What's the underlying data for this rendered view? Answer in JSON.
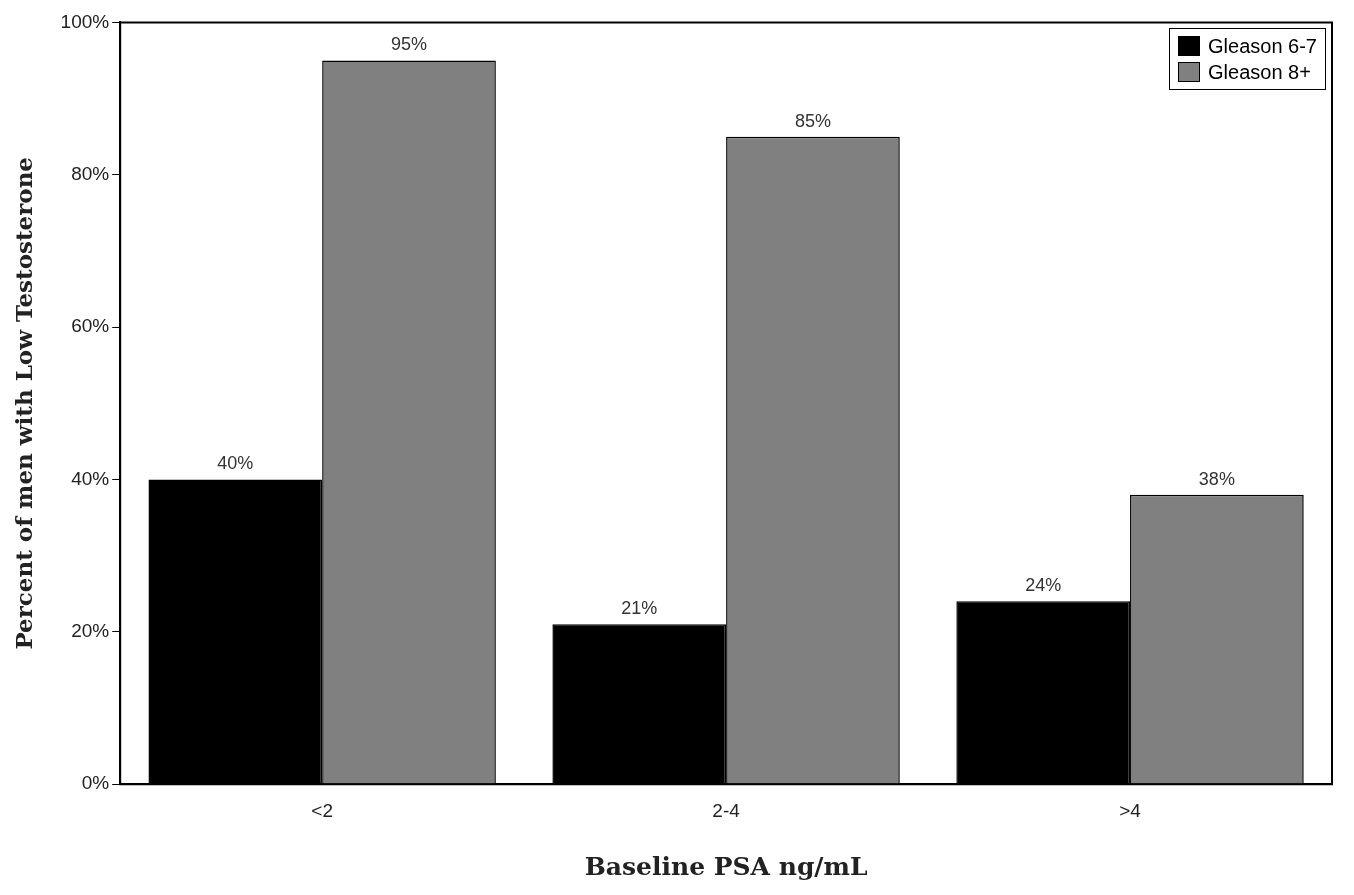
{
  "chart_data": {
    "type": "bar",
    "xlabel": "Baseline PSA ng/mL",
    "ylabel": "Percent of men with Low Testosterone",
    "categories": [
      "<2",
      "2-4",
      ">4"
    ],
    "series": [
      {
        "name": "Gleason 6-7",
        "color": "#000000",
        "values": [
          40,
          21,
          24
        ],
        "value_labels": [
          "40%",
          "21%",
          "24%"
        ]
      },
      {
        "name": "Gleason 8+",
        "color": "#808080",
        "values": [
          95,
          85,
          38
        ],
        "value_labels": [
          "95%",
          "85%",
          "38%"
        ]
      }
    ],
    "ylim": [
      0,
      100
    ],
    "yticks": [
      {
        "value": 0,
        "label": "0%"
      },
      {
        "value": 20,
        "label": "20%"
      },
      {
        "value": 40,
        "label": "40%"
      },
      {
        "value": 60,
        "label": "60%"
      },
      {
        "value": 80,
        "label": "80%"
      },
      {
        "value": 100,
        "label": "100%"
      }
    ],
    "grid": false,
    "legend": "top right"
  }
}
